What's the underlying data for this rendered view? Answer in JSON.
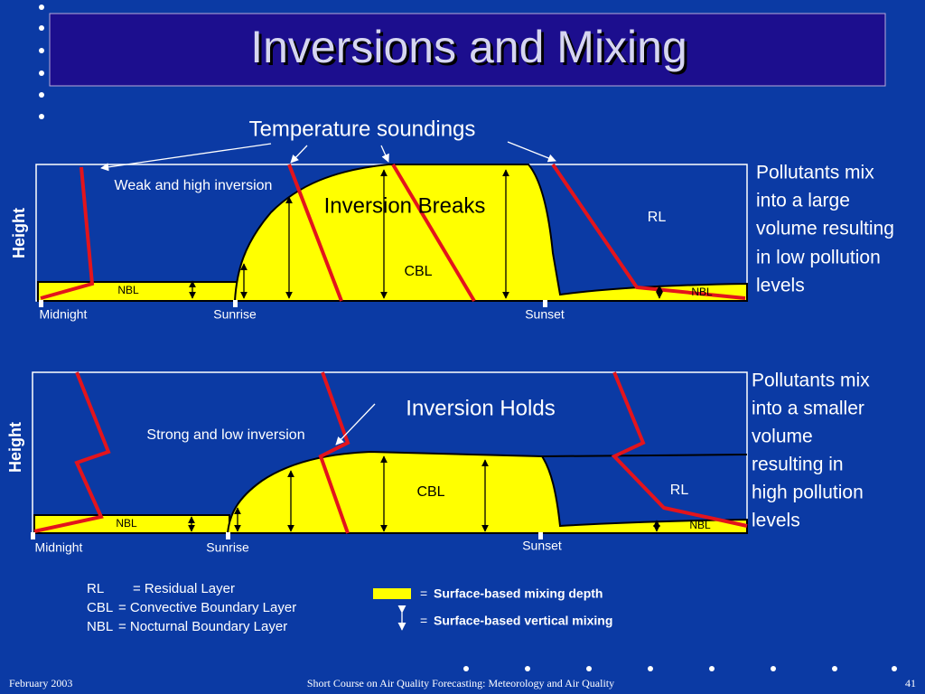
{
  "title": "Inversions and Mixing",
  "panels": [
    {
      "pointer_label": "Temperature soundings",
      "inversion_label": "Weak and high inversion",
      "state_label": "Inversion Breaks",
      "y_axis": "Height",
      "layers": {
        "rl": "RL",
        "cbl": "CBL",
        "nbl_left": "NBL",
        "nbl_right": "NBL"
      },
      "times": [
        "Midnight",
        "Sunrise",
        "Sunset"
      ],
      "note": [
        "Pollutants mix",
        "into a large",
        "volume resulting",
        "in low pollution",
        "levels"
      ]
    },
    {
      "inversion_label": "Strong and low inversion",
      "state_label": "Inversion Holds",
      "y_axis": "Height",
      "layers": {
        "rl": "RL",
        "cbl": "CBL",
        "nbl_left": "NBL",
        "nbl_right": "NBL"
      },
      "times": [
        "Midnight",
        "Sunrise",
        "Sunset"
      ],
      "note": [
        "Pollutants mix",
        "into a smaller",
        "volume",
        "resulting in",
        "high pollution",
        "levels"
      ]
    }
  ],
  "glossary": [
    {
      "abbr": "RL",
      "definition": "= Residual Layer"
    },
    {
      "abbr": "CBL",
      "definition": "= Convective Boundary Layer"
    },
    {
      "abbr": "NBL",
      "definition": "= Nocturnal Boundary Layer"
    }
  ],
  "legend": [
    {
      "equals": "=",
      "label": "Surface-based mixing depth"
    },
    {
      "equals": "=",
      "label": "Surface-based vertical mixing"
    }
  ],
  "footer": {
    "date": "February 2003",
    "course": "Short Course on Air Quality Forecasting: Meteorology and Air Quality",
    "page": "41"
  }
}
